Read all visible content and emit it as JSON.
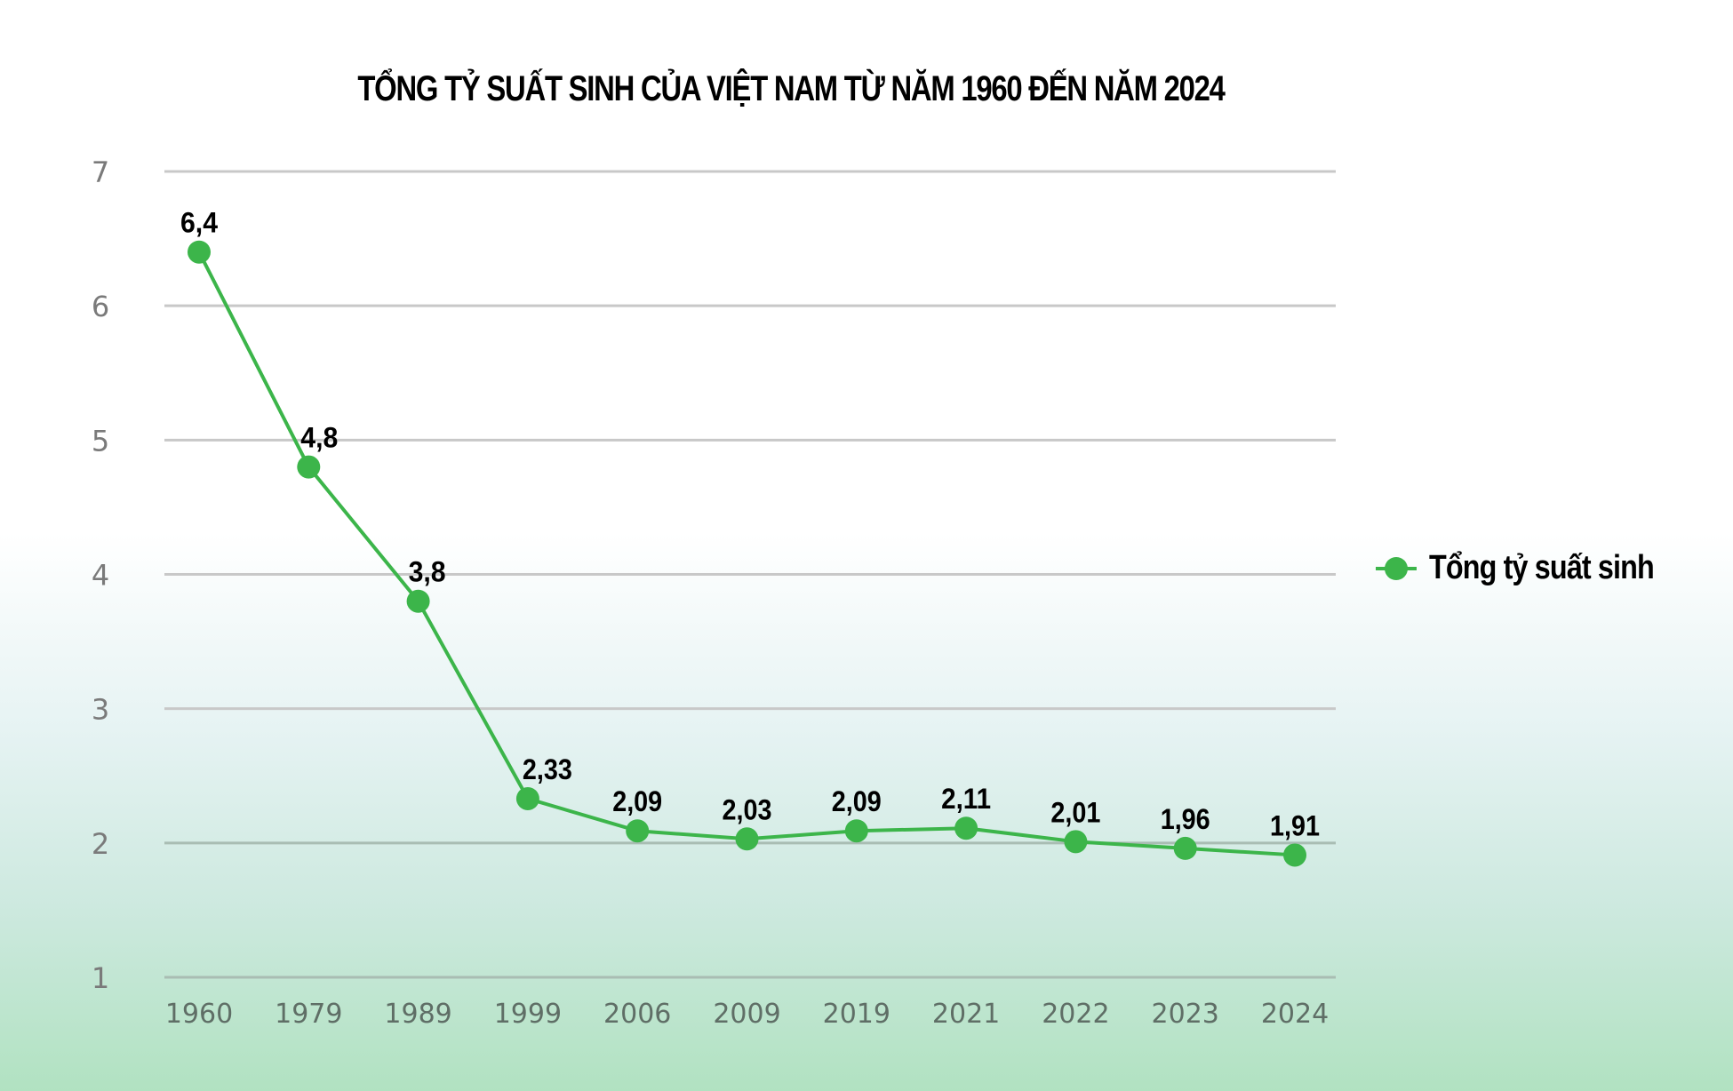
{
  "chart_data": {
    "type": "line",
    "title": "TỔNG TỶ SUẤT SINH CỦA VIỆT NAM TỪ NĂM 1960 ĐẾN NĂM 2024",
    "xlabel": "",
    "ylabel": "",
    "categories": [
      "1960",
      "1979",
      "1989",
      "1999",
      "2006",
      "2009",
      "2019",
      "2021",
      "2022",
      "2023",
      "2024"
    ],
    "series": [
      {
        "name": "Tổng tỷ suất sinh",
        "values": [
          6.4,
          4.8,
          3.8,
          2.33,
          2.09,
          2.03,
          2.09,
          2.11,
          2.01,
          1.96,
          1.91
        ],
        "data_labels": [
          "6,4",
          "4,8",
          "3,8",
          "2,33",
          "2,09",
          "2,03",
          "2,09",
          "2,11",
          "2,01",
          "1,96",
          "1,91"
        ],
        "color": "#3cb54a"
      }
    ],
    "ylim": [
      1,
      7
    ],
    "yticks": [
      "1",
      "2",
      "3",
      "4",
      "5",
      "6",
      "7"
    ],
    "grid": true,
    "legend": "right"
  },
  "colors": {
    "gridline": "#c8c8c8",
    "series": "#3cb54a"
  }
}
